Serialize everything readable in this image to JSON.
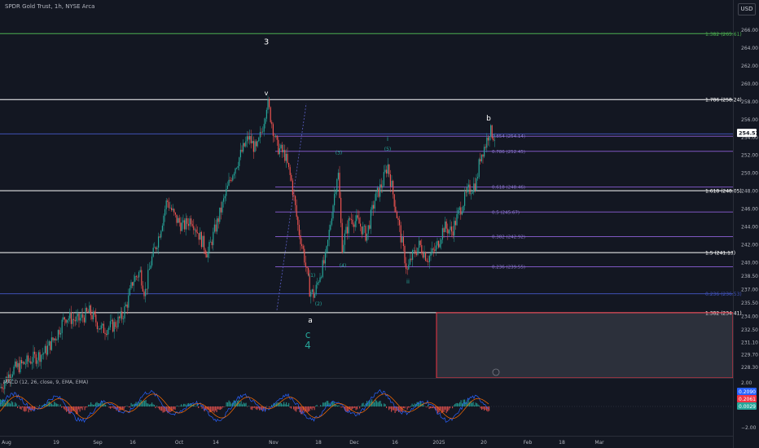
{
  "header": {
    "symbol": "SPDR Gold Trust, 1h, NYSE Arca",
    "currency": "USD"
  },
  "colors": {
    "bg": "#131722",
    "up": "#26a69a",
    "down": "#ef5350",
    "fib_blue": "#3f51b5",
    "fib_purple": "#7e57c2",
    "white": "#ffffff",
    "green": "#4caf50",
    "red": "#f23645"
  },
  "price_axis": {
    "ticks": [
      "266.00",
      "264.00",
      "262.00",
      "260.00",
      "258.00",
      "256.00",
      "254.00",
      "252.00",
      "250.00",
      "248.00",
      "246.00",
      "244.00",
      "242.00",
      "240.00",
      "238.50",
      "237.00",
      "235.50",
      "234.00",
      "232.50",
      "231.10",
      "229.70",
      "228.30"
    ],
    "current_price": "254.51",
    "current_price_small": "254.00"
  },
  "macd": {
    "label": "MACD (12, 26, close, 9, EMA, EMA)",
    "ticks": [
      "2.00",
      "−2.00"
    ],
    "badge_macd": "0.2090",
    "badge_signal": "0.2061",
    "badge_hist": "0.0029"
  },
  "time_axis": [
    "Aug",
    "19",
    "Sep",
    "16",
    "Oct",
    "14",
    "Nov",
    "18",
    "Dec",
    "16",
    "2025",
    "20",
    "Feb",
    "18",
    "Mar"
  ],
  "levels": [
    {
      "name": "fib-1382-top",
      "label": "1.382 (265.61)",
      "price": 265.61,
      "color": "#4caf50"
    },
    {
      "name": "fib-1786",
      "label": "1.786 (258.24)",
      "price": 258.24,
      "color": "#ffffff"
    },
    {
      "name": "fib-1618",
      "label": "1.618 (248.05)",
      "price": 248.05,
      "color": "#ffffff"
    },
    {
      "name": "fib-15",
      "label": "1.5 (241.13)",
      "price": 241.13,
      "color": "#ffffff"
    },
    {
      "name": "fib-0236-blue",
      "label": "0.236 (236.53)",
      "price": 236.53,
      "color": "#3f51b5"
    },
    {
      "name": "fib-1382-low",
      "label": "1.382 (234.41)",
      "price": 234.41,
      "color": "#ffffff"
    }
  ],
  "retracements": [
    {
      "label": "0.854 (254.14)",
      "price": 254.14
    },
    {
      "label": "0.786 (252.45)",
      "price": 252.45
    },
    {
      "label": "0.618 (248.46)",
      "price": 248.46
    },
    {
      "label": "0.5 (245.67)",
      "price": 245.67
    },
    {
      "label": "0.382 (242.92)",
      "price": 242.92
    },
    {
      "label": "0.236 (239.55)",
      "price": 239.55
    }
  ],
  "wave_labels": [
    {
      "text": "3",
      "color": "#ffffff",
      "size": 10,
      "x": 327,
      "price": 264.4
    },
    {
      "text": "v",
      "color": "#ffffff",
      "size": 8,
      "x": 327,
      "price": 258.7
    },
    {
      "text": "b",
      "color": "#ffffff",
      "size": 9,
      "x": 600,
      "price": 255.9
    },
    {
      "text": "a",
      "color": "#ffffff",
      "size": 9,
      "x": 381,
      "price": 233.3
    },
    {
      "text": "c",
      "color": "#26a69a",
      "size": 12,
      "x": 378,
      "price": 231.6
    },
    {
      "text": "4",
      "color": "#26a69a",
      "size": 12,
      "x": 378,
      "price": 230.4
    },
    {
      "text": "i",
      "color": "#26a69a",
      "size": 8,
      "x": 476,
      "price": 253.6
    },
    {
      "text": "(3)",
      "color": "#26a69a",
      "size": 6,
      "x": 416,
      "price": 252.1
    },
    {
      "text": "(5)",
      "color": "#26a69a",
      "size": 6,
      "x": 476,
      "price": 252.5
    },
    {
      "text": "(4)",
      "color": "#26a69a",
      "size": 6,
      "x": 421,
      "price": 239.5
    },
    {
      "text": "(1)",
      "color": "#26a69a",
      "size": 6,
      "x": 383,
      "price": 238.4
    },
    {
      "text": "(2)",
      "color": "#26a69a",
      "size": 6,
      "x": 391,
      "price": 235.2
    },
    {
      "text": "ii",
      "color": "#26a69a",
      "size": 7,
      "x": 501,
      "price": 237.7
    }
  ],
  "price_path": [
    [
      0,
      226
    ],
    [
      15,
      228
    ],
    [
      35,
      229
    ],
    [
      55,
      230
    ],
    [
      70,
      232
    ],
    [
      80,
      234
    ],
    [
      95,
      233.5
    ],
    [
      110,
      234.5
    ],
    [
      125,
      232.5
    ],
    [
      140,
      233
    ],
    [
      150,
      234
    ],
    [
      158,
      236
    ],
    [
      163,
      238
    ],
    [
      172,
      239
    ],
    [
      178,
      236.5
    ],
    [
      185,
      240
    ],
    [
      195,
      243
    ],
    [
      205,
      247
    ],
    [
      215,
      245
    ],
    [
      225,
      244
    ],
    [
      235,
      245
    ],
    [
      245,
      243
    ],
    [
      255,
      241
    ],
    [
      265,
      244
    ],
    [
      275,
      247
    ],
    [
      285,
      250
    ],
    [
      295,
      252
    ],
    [
      305,
      254
    ],
    [
      315,
      252.5
    ],
    [
      322,
      255
    ],
    [
      328,
      258
    ],
    [
      333,
      256
    ],
    [
      340,
      253
    ],
    [
      350,
      252
    ],
    [
      358,
      249
    ],
    [
      366,
      244
    ],
    [
      373,
      241
    ],
    [
      380,
      237
    ],
    [
      386,
      236.3
    ],
    [
      392,
      238.5
    ],
    [
      400,
      240.5
    ],
    [
      408,
      246
    ],
    [
      415,
      250.5
    ],
    [
      420,
      241.8
    ],
    [
      430,
      245
    ],
    [
      440,
      244.5
    ],
    [
      450,
      243
    ],
    [
      460,
      247
    ],
    [
      470,
      249
    ],
    [
      476,
      251
    ],
    [
      482,
      248
    ],
    [
      490,
      244
    ],
    [
      500,
      239
    ],
    [
      505,
      240.5
    ],
    [
      515,
      242
    ],
    [
      525,
      240.5
    ],
    [
      535,
      241.5
    ],
    [
      545,
      244
    ],
    [
      555,
      243.5
    ],
    [
      565,
      246
    ],
    [
      575,
      248
    ],
    [
      585,
      249
    ],
    [
      590,
      252
    ],
    [
      596,
      253.2
    ],
    [
      601,
      254.8
    ],
    [
      608,
      254
    ]
  ],
  "macd_path_points": 120
}
